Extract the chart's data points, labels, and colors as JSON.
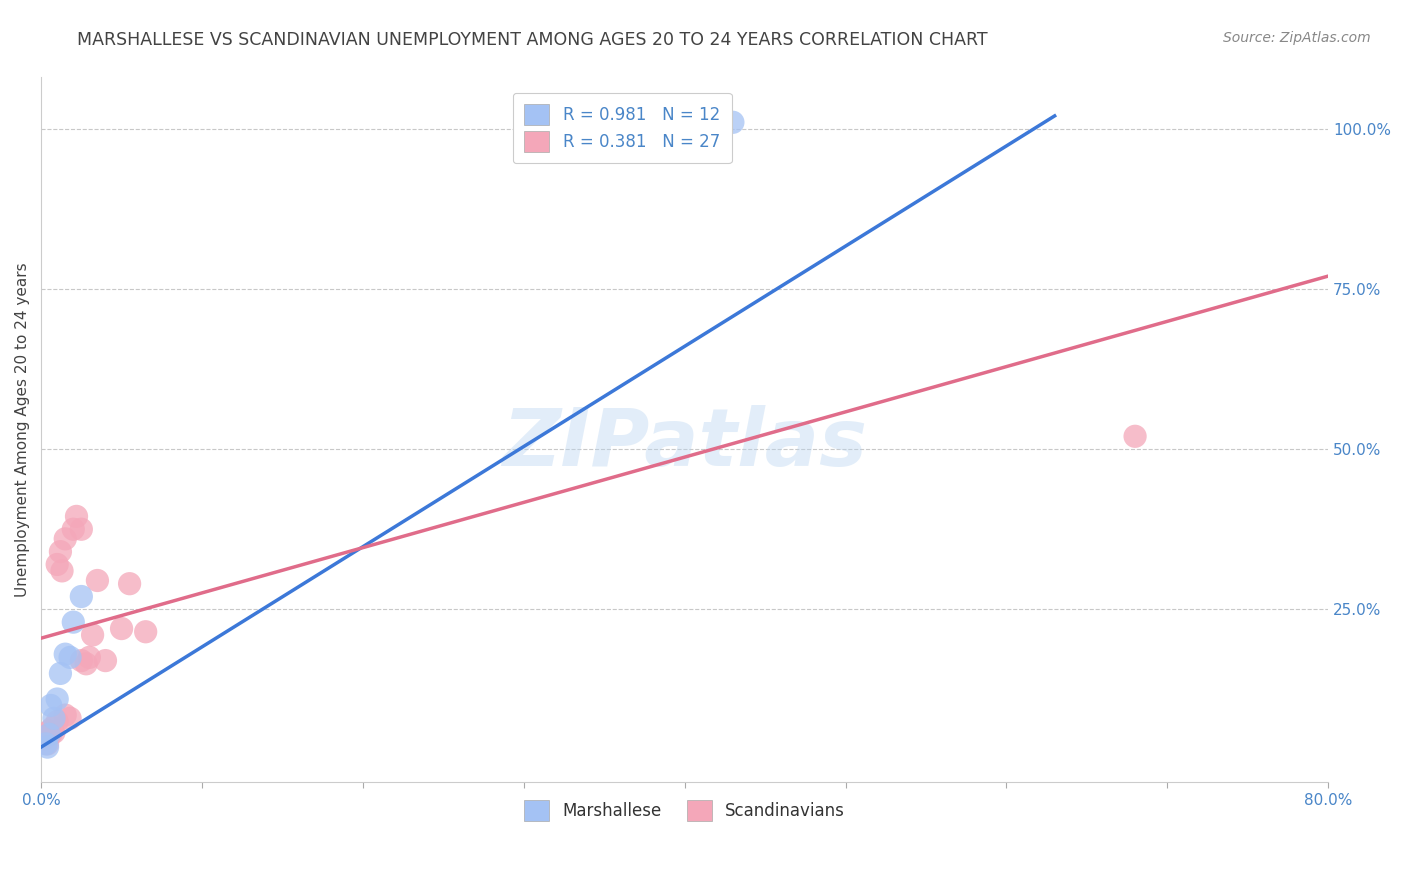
{
  "title": "MARSHALLESE VS SCANDINAVIAN UNEMPLOYMENT AMONG AGES 20 TO 24 YEARS CORRELATION CHART",
  "source": "Source: ZipAtlas.com",
  "ylabel": "Unemployment Among Ages 20 to 24 years",
  "xlim": [
    0.0,
    0.8
  ],
  "ylim": [
    -0.02,
    1.08
  ],
  "xticks": [
    0.0,
    0.1,
    0.2,
    0.3,
    0.4,
    0.5,
    0.6,
    0.7,
    0.8
  ],
  "xticklabels": [
    "0.0%",
    "",
    "",
    "",
    "",
    "",
    "",
    "",
    "80.0%"
  ],
  "yticks_right": [
    0.25,
    0.5,
    0.75,
    1.0
  ],
  "ytick_right_labels": [
    "25.0%",
    "50.0%",
    "75.0%",
    "100.0%"
  ],
  "blue_color": "#a4c2f4",
  "pink_color": "#f4a7b9",
  "blue_line_color": "#3c78d8",
  "pink_line_color": "#e06c8a",
  "legend_R_blue": "R = 0.981",
  "legend_N_blue": "N = 12",
  "legend_R_pink": "R = 0.381",
  "legend_N_pink": "N = 27",
  "blue_scatter_x": [
    0.003,
    0.004,
    0.005,
    0.006,
    0.008,
    0.01,
    0.012,
    0.015,
    0.018,
    0.02,
    0.025,
    0.43
  ],
  "blue_scatter_y": [
    0.04,
    0.035,
    0.055,
    0.1,
    0.08,
    0.11,
    0.15,
    0.18,
    0.175,
    0.23,
    0.27,
    1.01
  ],
  "pink_scatter_x": [
    0.002,
    0.003,
    0.004,
    0.005,
    0.006,
    0.007,
    0.008,
    0.01,
    0.01,
    0.012,
    0.013,
    0.015,
    0.015,
    0.018,
    0.02,
    0.022,
    0.025,
    0.025,
    0.028,
    0.03,
    0.032,
    0.035,
    0.04,
    0.05,
    0.055,
    0.065,
    0.68
  ],
  "pink_scatter_y": [
    0.048,
    0.052,
    0.04,
    0.06,
    0.055,
    0.065,
    0.058,
    0.075,
    0.32,
    0.34,
    0.31,
    0.085,
    0.36,
    0.08,
    0.375,
    0.395,
    0.17,
    0.375,
    0.165,
    0.175,
    0.21,
    0.295,
    0.17,
    0.22,
    0.29,
    0.215,
    0.52
  ],
  "blue_trend_x0": 0.0,
  "blue_trend_y0": 0.035,
  "blue_trend_x1": 0.63,
  "blue_trend_y1": 1.02,
  "pink_trend_x0": 0.0,
  "pink_trend_y0": 0.205,
  "pink_trend_x1": 0.8,
  "pink_trend_y1": 0.77,
  "watermark_text": "ZIPatlas",
  "background_color": "#ffffff",
  "grid_color": "#c8c8c8",
  "title_color": "#434343",
  "source_color": "#888888",
  "tick_color": "#4a86c8",
  "label_color": "#434343",
  "title_fontsize": 12.5,
  "axis_label_fontsize": 11,
  "tick_fontsize": 11,
  "legend_fontsize": 12,
  "source_fontsize": 10
}
